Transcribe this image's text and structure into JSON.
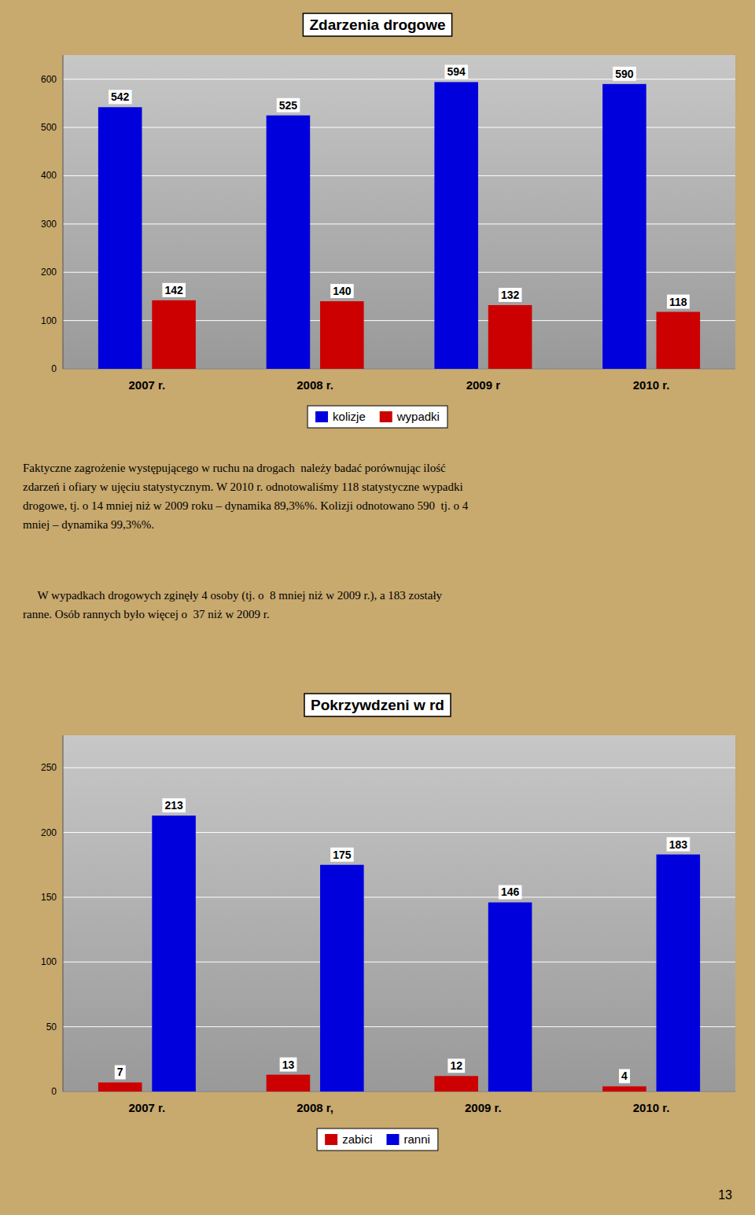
{
  "chart_data": [
    {
      "type": "bar",
      "title": "Zdarzenia drogowe",
      "categories": [
        "2007 r.",
        "2008 r.",
        "2009 r",
        "2010 r."
      ],
      "series": [
        {
          "name": "kolizje",
          "color": "#0000DD",
          "values": [
            542,
            525,
            594,
            590
          ]
        },
        {
          "name": "wypadki",
          "color": "#CC0000",
          "values": [
            142,
            140,
            132,
            118
          ]
        }
      ],
      "ylim": [
        0,
        650
      ],
      "yticks": [
        0,
        100,
        200,
        300,
        400,
        500,
        600
      ],
      "grid": true,
      "legend": "bottom",
      "data_labels": true,
      "tick_labels": "y"
    },
    {
      "type": "bar",
      "title": "Pokrzywdzeni w rd",
      "categories": [
        "2007 r.",
        "2008 r,",
        "2009 r.",
        "2010 r."
      ],
      "series": [
        {
          "name": "zabici",
          "color": "#CC0000",
          "values": [
            7,
            13,
            12,
            4
          ]
        },
        {
          "name": "ranni",
          "color": "#0000DD",
          "values": [
            213,
            175,
            146,
            183
          ]
        }
      ],
      "ylim": [
        0,
        275
      ],
      "yticks": [
        0,
        50,
        100,
        150,
        200,
        250
      ],
      "grid": true,
      "legend": "bottom",
      "data_labels": true,
      "tick_labels": "y"
    }
  ],
  "paragraphs": [
    [
      "Faktyczne zagrożenie występującego w ruchu na drogach  należy badać porównując ilość",
      "zdarzeń i ofiary w ujęciu statystycznym. W 2010 r. odnotowaliśmy 118 statystyczne wypadki",
      "drogowe, tj. o 14 mniej niż w 2009 roku – dynamika 89,3%%. Kolizji odnotowano 590  tj. o 4",
      "mniej – dynamika 99,3%%."
    ],
    [
      "     W wypadkach drogowych zginęły 4 osoby (tj. o  8 mniej niż w 2009 r.), a 183 zostały",
      "ranne. Osób rannych było więcej o  37 niż w 2009 r."
    ]
  ],
  "page_number": "13"
}
